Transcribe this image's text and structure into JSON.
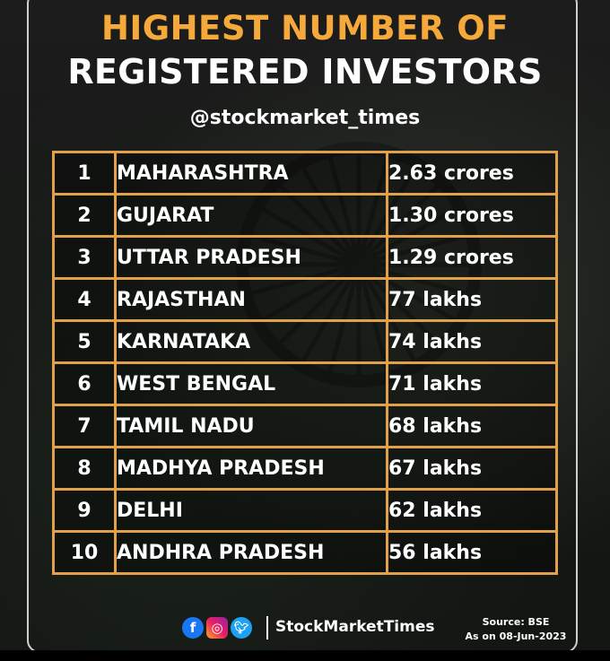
{
  "header": {
    "title_line1": "HIGHEST NUMBER OF",
    "title_line2": "REGISTERED INVESTORS",
    "handle": "@stockmarket_times"
  },
  "table": {
    "rows": [
      {
        "rank": "1",
        "state": "MAHARASHTRA",
        "value": "2.63 crores"
      },
      {
        "rank": "2",
        "state": "GUJARAT",
        "value": "1.30 crores"
      },
      {
        "rank": "3",
        "state": "UTTAR PRADESH",
        "value": "1.29 crores"
      },
      {
        "rank": "4",
        "state": "RAJASTHAN",
        "value": "77 lakhs"
      },
      {
        "rank": "5",
        "state": "KARNATAKA",
        "value": "74 lakhs"
      },
      {
        "rank": "6",
        "state": "WEST BENGAL",
        "value": "71 lakhs"
      },
      {
        "rank": "7",
        "state": "TAMIL NADU",
        "value": "68 lakhs"
      },
      {
        "rank": "8",
        "state": "MADHYA PRADESH",
        "value": "67 lakhs"
      },
      {
        "rank": "9",
        "state": "DELHI",
        "value": "62 lakhs"
      },
      {
        "rank": "10",
        "state": "ANDHRA PRADESH",
        "value": "56 lakhs"
      }
    ]
  },
  "footer": {
    "brand": "StockMarketTimes",
    "source": "Source: BSE",
    "date": "As on 08-Jun-2023",
    "icons": [
      "facebook-icon",
      "instagram-icon",
      "twitter-icon"
    ]
  },
  "colors": {
    "accent": "#f6a93b",
    "table_border": "#e3a04a",
    "text": "#ffffff"
  }
}
